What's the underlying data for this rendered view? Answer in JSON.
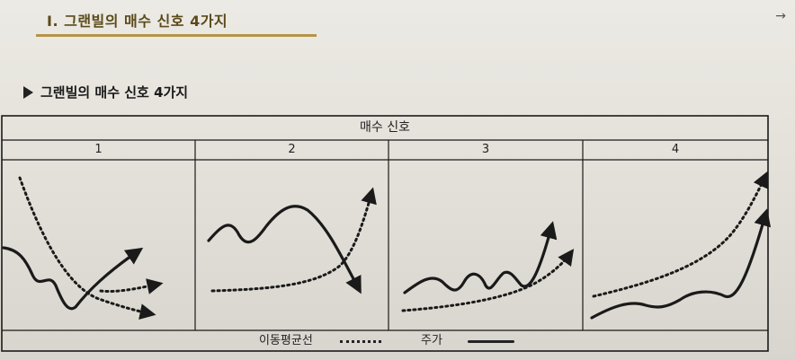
{
  "section": {
    "title": "Ⅰ. 그랜빌의 매수 신호 4가지",
    "arrow": "→"
  },
  "subsection": {
    "title": "그랜빌의 매수 신호 4가지"
  },
  "table": {
    "header": "매수 신호",
    "columns": [
      "1",
      "2",
      "3",
      "4"
    ]
  },
  "legend": {
    "moving_average": "이동평균선",
    "price": "주가"
  }
}
